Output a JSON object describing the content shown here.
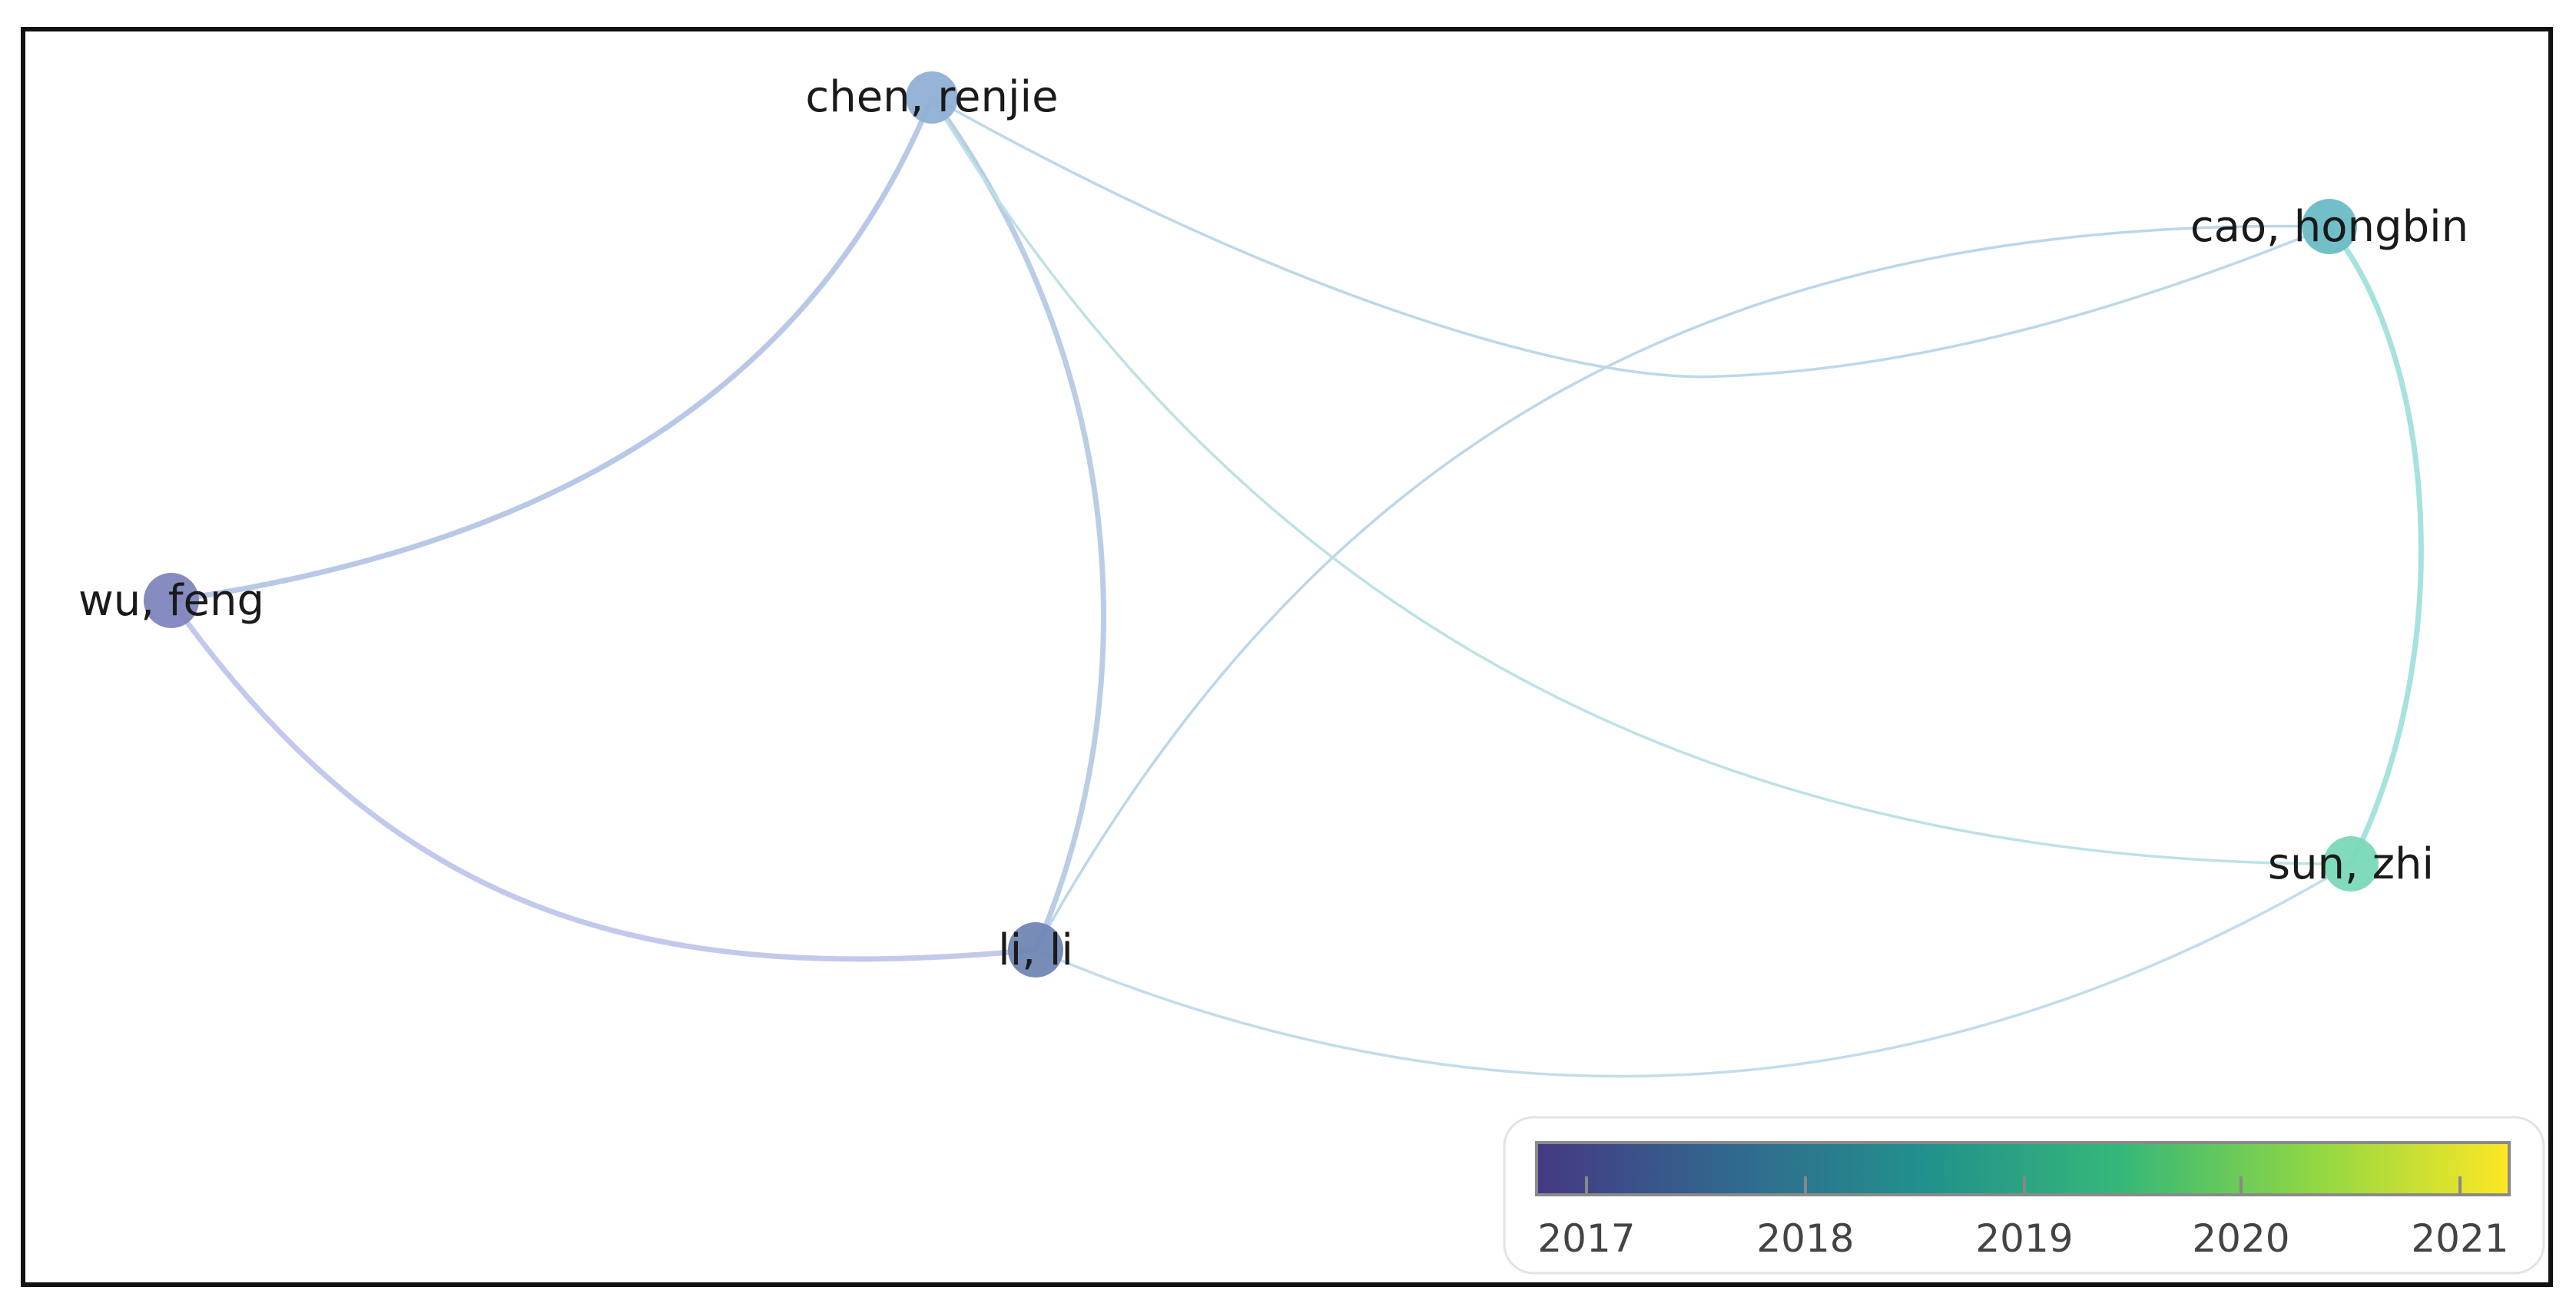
{
  "network": {
    "nodes": [
      {
        "id": "chen",
        "label": "chen, renjie",
        "year": 2017.8,
        "color": "#8fb0d4"
      },
      {
        "id": "cao",
        "label": "cao, hongbin",
        "year": 2018.6,
        "color": "#6cbcc6"
      },
      {
        "id": "wu",
        "label": "wu, feng",
        "year": 2017.2,
        "color": "#7f86bd"
      },
      {
        "id": "li",
        "label": "li, li",
        "year": 2017.5,
        "color": "#7086b3"
      },
      {
        "id": "sun",
        "label": "sun, zhi",
        "year": 2019.1,
        "color": "#79d9b8"
      }
    ],
    "edges": [
      {
        "from": "chen",
        "to": "wu",
        "weight": 3,
        "color": "#b8c8e6"
      },
      {
        "from": "chen",
        "to": "li",
        "weight": 3,
        "color": "#b9cde6"
      },
      {
        "from": "chen",
        "to": "cao",
        "weight": 1,
        "color": "#bcd8ea"
      },
      {
        "from": "chen",
        "to": "sun",
        "weight": 1,
        "color": "#bce2e4"
      },
      {
        "from": "wu",
        "to": "li",
        "weight": 3,
        "color": "#c2c9ec"
      },
      {
        "from": "li",
        "to": "cao",
        "weight": 1,
        "color": "#bcd6ea"
      },
      {
        "from": "li",
        "to": "sun",
        "weight": 1,
        "color": "#c3dcec"
      },
      {
        "from": "cao",
        "to": "sun",
        "weight": 3,
        "color": "#a6e2de"
      }
    ]
  },
  "colorbar": {
    "ticks": [
      "2017",
      "2018",
      "2019",
      "2020",
      "2021"
    ],
    "stops": [
      "#443983",
      "#31688e",
      "#21918c",
      "#35b779",
      "#90d743",
      "#fde725"
    ]
  }
}
